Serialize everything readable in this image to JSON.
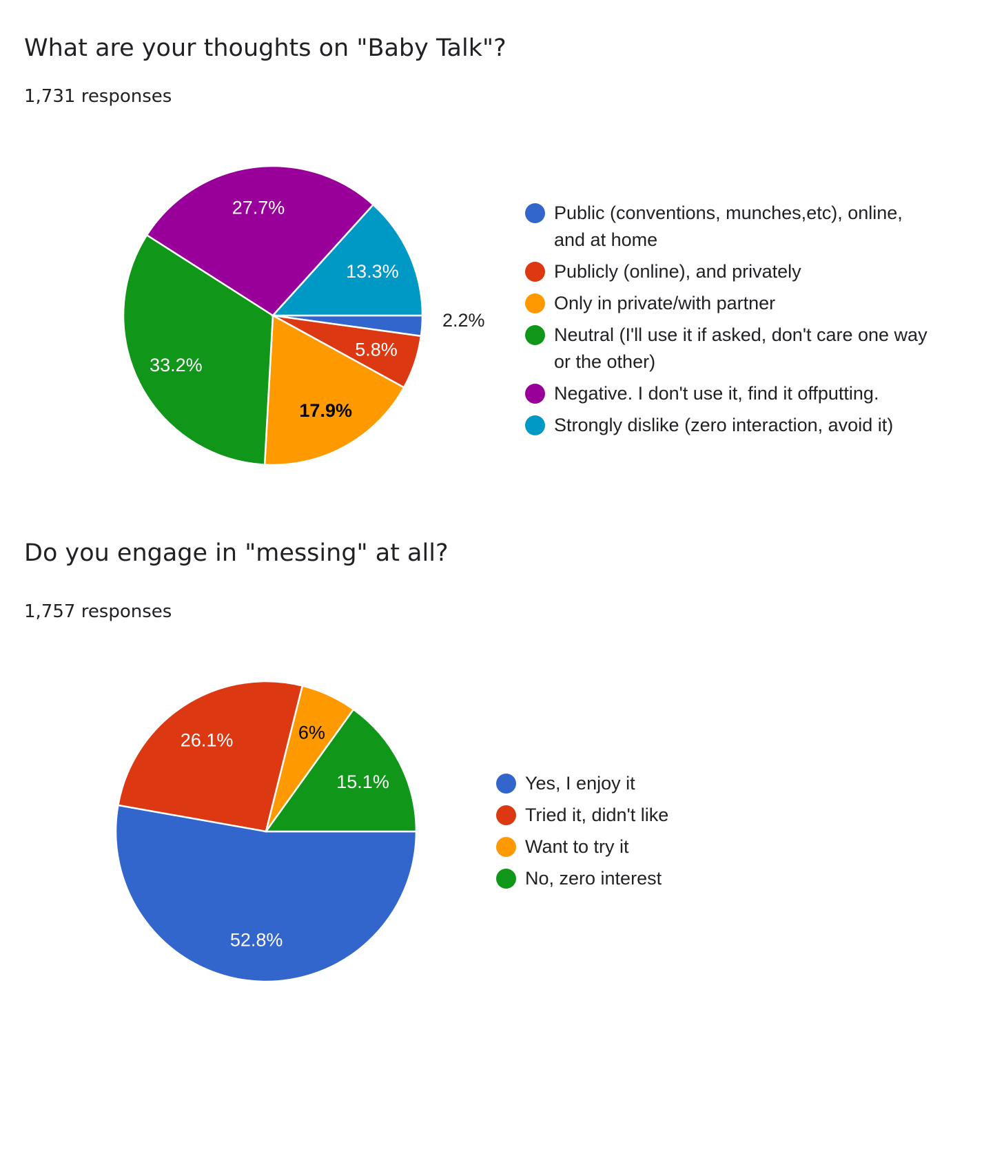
{
  "questions": [
    {
      "title": "What are your thoughts on \"Baby Talk\"?",
      "responses": "1,731 responses"
    },
    {
      "title": "Do you engage in \"messing\" at all?",
      "responses": "1,757 responses"
    }
  ],
  "chart_data": [
    {
      "type": "pie",
      "categories": [
        "Public (conventions, munches,etc), online, and at home",
        "Publicly (online), and privately",
        "Only in private/with partner",
        "Neutral (I'll use it if asked, don't care one way or the other)",
        "Negative. I don't use it, find it offputting.",
        "Strongly dislike (zero interaction, avoid it)"
      ],
      "values": [
        2.2,
        5.8,
        17.9,
        33.2,
        27.7,
        13.3
      ],
      "labels": [
        "2.2%",
        "5.8%",
        "17.9%",
        "33.2%",
        "27.7%",
        "13.3%"
      ],
      "colors": [
        "#3366cc",
        "#dc3912",
        "#ff9900",
        "#109618",
        "#990099",
        "#0099c6"
      ],
      "label_colors": [
        "#202124",
        "#ffffff",
        "#000000",
        "#ffffff",
        "#ffffff",
        "#ffffff"
      ],
      "legend_placement": "right"
    },
    {
      "type": "pie",
      "categories": [
        "Yes, I enjoy it",
        "Tried it, didn't like",
        "Want to try it",
        "No, zero interest"
      ],
      "values": [
        52.8,
        26.1,
        6,
        15.1
      ],
      "labels": [
        "52.8%",
        "26.1%",
        "6%",
        "15.1%"
      ],
      "colors": [
        "#3366cc",
        "#dc3912",
        "#ff9900",
        "#109618"
      ],
      "label_colors": [
        "#ffffff",
        "#ffffff",
        "#000000",
        "#ffffff"
      ],
      "legend_placement": "right"
    }
  ]
}
